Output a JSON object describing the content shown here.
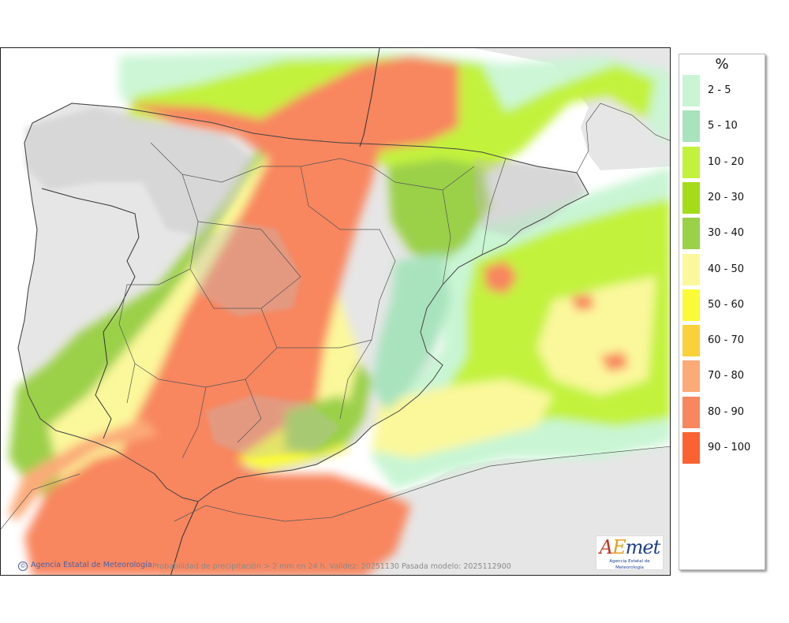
{
  "map": {
    "credit": "Agencia Estatal de Meteorología",
    "caption": "Probabilidad de precipitación > 2 mm en 24 h. Validez: 20251130 Pasada modelo: 2025112900",
    "logo_text": "AEmet",
    "logo_subtext": "Agencia Estatal de Meteorología"
  },
  "legend": {
    "title": "%",
    "items": [
      {
        "label": "2 - 5",
        "color": "#c9f5d4"
      },
      {
        "label": "5 - 10",
        "color": "#a9e3bd"
      },
      {
        "label": "10 - 20",
        "color": "#c3f23d"
      },
      {
        "label": "20 - 30",
        "color": "#a4dc18"
      },
      {
        "label": "30 - 40",
        "color": "#9bd049"
      },
      {
        "label": "40 - 50",
        "color": "#fbf89b"
      },
      {
        "label": "50 - 60",
        "color": "#fafa37"
      },
      {
        "label": "60 - 70",
        "color": "#fbd13a"
      },
      {
        "label": "70 - 80",
        "color": "#fbaa78"
      },
      {
        "label": "80 - 90",
        "color": "#f8865f"
      },
      {
        "label": "90 - 100",
        "color": "#fb6232"
      }
    ]
  },
  "colors": {
    "land": "#e6e6e6",
    "border": "#333333"
  }
}
